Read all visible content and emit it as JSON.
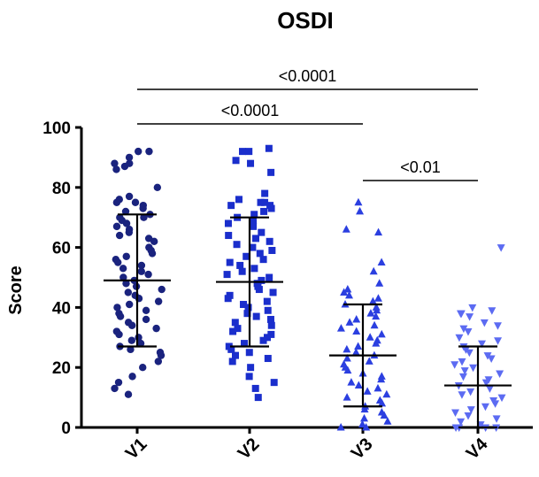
{
  "chart_data": {
    "type": "scatter",
    "title": "OSDI",
    "xlabel": "",
    "ylabel": "Score",
    "ylim": [
      0,
      100
    ],
    "yticks": [
      0,
      20,
      40,
      60,
      80,
      100
    ],
    "categories": [
      "V1",
      "V2",
      "V3",
      "V4"
    ],
    "summary_bars": "mean ± SD",
    "series": [
      {
        "name": "V1",
        "marker": "circle",
        "color": "#1a237e",
        "mean": 49,
        "sd_low": 27,
        "sd_high": 71,
        "values": [
          92,
          92,
          90,
          88,
          88,
          87,
          86,
          80,
          77,
          76,
          75,
          75,
          74,
          73,
          72,
          71,
          70,
          70,
          69,
          68,
          67,
          66,
          65,
          64,
          63,
          62,
          60,
          59,
          58,
          57,
          56,
          55,
          54,
          53,
          52,
          51,
          50,
          49,
          48,
          47,
          46,
          45,
          44,
          43,
          42,
          41,
          40,
          39,
          38,
          37,
          36,
          35,
          34,
          33,
          32,
          31,
          30,
          29,
          28,
          27,
          26,
          25,
          24,
          22,
          20,
          17,
          15,
          13,
          11
        ]
      },
      {
        "name": "V2",
        "marker": "square",
        "color": "#1a2ecc",
        "mean": 48.5,
        "sd_low": 27,
        "sd_high": 70,
        "values": [
          93,
          92,
          92,
          89,
          88,
          85,
          78,
          76,
          75,
          75,
          74,
          74,
          73,
          72,
          71,
          70,
          69,
          68,
          67,
          65,
          64,
          63,
          62,
          61,
          60,
          59,
          58,
          57,
          56,
          55,
          54,
          53,
          52,
          51,
          50,
          49,
          48,
          47,
          46,
          45,
          44,
          43,
          42,
          41,
          40,
          39,
          38,
          37,
          36,
          35,
          34,
          33,
          32,
          31,
          30,
          29,
          28,
          27,
          26,
          25,
          24,
          23,
          22,
          20,
          17,
          15,
          13,
          10
        ]
      },
      {
        "name": "V3",
        "marker": "triangle-up",
        "color": "#2b3fe0",
        "mean": 24,
        "sd_low": 7,
        "sd_high": 41,
        "values": [
          75,
          72,
          66,
          65,
          55,
          52,
          48,
          46,
          45,
          44,
          43,
          42,
          41,
          40,
          39,
          38,
          37,
          36,
          35,
          34,
          33,
          32,
          31,
          30,
          29,
          28,
          27,
          26,
          25,
          24,
          23,
          22,
          21,
          20,
          19,
          18,
          17,
          16,
          15,
          14,
          13,
          12,
          11,
          10,
          9,
          8,
          7,
          6,
          5,
          4,
          3,
          2,
          1,
          0,
          0
        ]
      },
      {
        "name": "V4",
        "marker": "triangle-down",
        "color": "#5c6bf2",
        "mean": 14,
        "sd_low": 0,
        "sd_high": 27,
        "values": [
          60,
          40,
          39,
          38,
          38,
          37,
          35,
          34,
          33,
          32,
          30,
          29,
          28,
          27,
          26,
          25,
          24,
          23,
          22,
          21,
          20,
          19,
          18,
          17,
          16,
          15,
          14,
          13,
          12,
          11,
          10,
          9,
          8,
          7,
          6,
          5,
          4,
          3,
          2,
          1,
          0,
          0,
          0,
          0
        ]
      }
    ],
    "comparisons": [
      {
        "from": "V1",
        "to": "V4",
        "label": "<0.0001"
      },
      {
        "from": "V1",
        "to": "V3",
        "label": "<0.0001"
      },
      {
        "from": "V3",
        "to": "V4",
        "label": "<0.01"
      }
    ]
  }
}
